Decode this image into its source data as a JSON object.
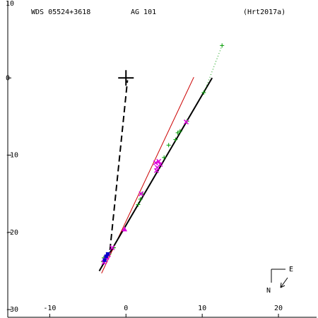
{
  "header": {
    "wds_id": "WDS 05524+3618",
    "discoverer": "AG  101",
    "reference": "(Hrt2017a)"
  },
  "compass": {
    "north": "N",
    "east": "E"
  },
  "chart_data": {
    "type": "scatter",
    "xlim": [
      -15.5,
      25
    ],
    "ylim": [
      -31,
      10
    ],
    "x_ticks": [
      -10,
      0,
      10,
      20
    ],
    "y_ticks": [
      0,
      -10,
      -20,
      -30
    ],
    "y_tick_labels": [
      "0",
      "-10",
      "-20",
      "-30"
    ],
    "top_edge_label": "10",
    "primary": {
      "x": 0,
      "y": 0
    },
    "orbit_line": {
      "color": "#000000",
      "points": [
        [
          -3.5,
          -25
        ],
        [
          11.3,
          0
        ]
      ]
    },
    "linear_fit_line": {
      "color": "#cc0000",
      "points": [
        [
          -3.2,
          -25.3
        ],
        [
          8.9,
          0.1
        ]
      ]
    },
    "dotted_extension": {
      "color": "#009900",
      "points": [
        [
          10.2,
          -2
        ],
        [
          12.6,
          4.2
        ]
      ]
    },
    "periastron_line": {
      "points": [
        [
          -2.1,
          -22.3
        ],
        [
          0.2,
          -0.3
        ]
      ]
    },
    "series": [
      {
        "marker": "plus",
        "color": "#009900",
        "points": [
          [
            12.6,
            4.2
          ],
          [
            10.2,
            -1.9
          ],
          [
            8.0,
            -5.6
          ],
          [
            7.1,
            -6.9
          ],
          [
            6.8,
            -7.1
          ],
          [
            6.5,
            -8.0
          ],
          [
            5.6,
            -8.7
          ],
          [
            5.0,
            -10.3
          ],
          [
            2.1,
            -15.0
          ],
          [
            1.9,
            -15.7
          ],
          [
            1.6,
            -16.4
          ],
          [
            -1.6,
            -22.0
          ],
          [
            -2.2,
            -22.8
          ],
          [
            -2.9,
            -23.3
          ],
          [
            -3.0,
            -23.8
          ]
        ]
      },
      {
        "marker": "cross",
        "color": "#dd00dd",
        "points": [
          [
            7.9,
            -5.7
          ],
          [
            4.3,
            -10.8
          ],
          [
            4.5,
            -11.2
          ],
          [
            3.9,
            -11.0
          ],
          [
            4.1,
            -11.6
          ],
          [
            4.0,
            -12.0
          ],
          [
            2.0,
            -15.0
          ],
          [
            -1.8,
            -22.0
          ],
          [
            -2.3,
            -22.9
          ],
          [
            -2.5,
            -23.2
          ],
          [
            -2.7,
            -23.6
          ],
          [
            -2.9,
            -23.9
          ],
          [
            -2.6,
            -23.3
          ]
        ]
      },
      {
        "marker": "triangle",
        "color": "#dd00dd",
        "points": [
          [
            -0.2,
            -19.6
          ]
        ]
      },
      {
        "marker": "square",
        "color": "#0000cc",
        "points": [
          [
            -2.8,
            -23.6
          ],
          [
            -2.6,
            -23.1
          ],
          [
            -2.4,
            -22.8
          ]
        ]
      }
    ]
  }
}
